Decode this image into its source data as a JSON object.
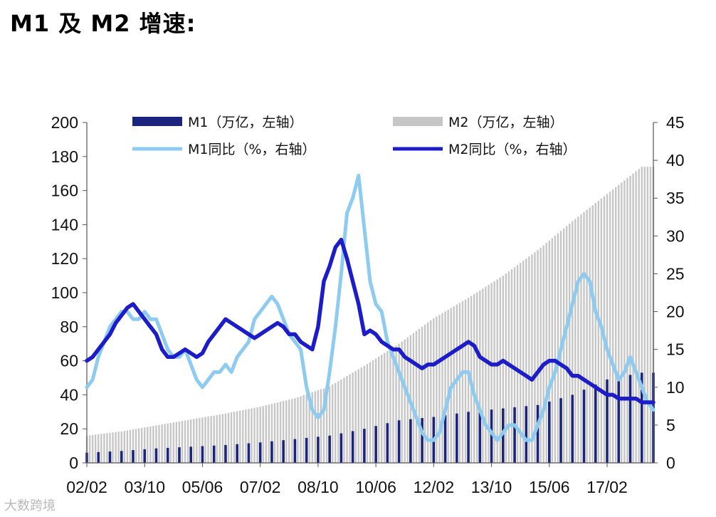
{
  "title": "M1 及 M2 增速:",
  "watermark": "大数跨境",
  "chart_data": {
    "type": "bar+line",
    "title": "M1 及 M2 增速:",
    "x_tick_labels": [
      "02/02",
      "03/10",
      "05/06",
      "07/02",
      "08/10",
      "10/06",
      "12/02",
      "13/10",
      "15/06",
      "17/02"
    ],
    "x_tick_positions_months": [
      0,
      20,
      40,
      60,
      80,
      100,
      120,
      140,
      160,
      180
    ],
    "x_range_months": [
      0,
      196
    ],
    "left_axis": {
      "min": 0,
      "max": 200,
      "ticks": [
        0,
        20,
        40,
        60,
        80,
        100,
        120,
        140,
        160,
        180,
        200
      ]
    },
    "right_axis": {
      "min": 0,
      "max": 45,
      "ticks": [
        0,
        5,
        10,
        15,
        20,
        25,
        30,
        35,
        40,
        45
      ]
    },
    "legend": {
      "m1": "M1（万亿，左轴）",
      "m2": "M2（万亿，左轴）",
      "m1_yoy": "M1同比（%，右轴）",
      "m2_yoy": "M2同比（%，右轴）"
    },
    "colors": {
      "m1_bar": "#1a237e",
      "m2_bar": "#c6c6c6",
      "m1_yoy": "#8ecbf0",
      "m2_yoy": "#1c1cc8"
    },
    "series": [
      {
        "name": "M1（万亿，左轴）",
        "axis": "left",
        "kind": "bar",
        "x": [
          0,
          12,
          24,
          36,
          48,
          60,
          72,
          84,
          96,
          108,
          120,
          132,
          144,
          156,
          168,
          180,
          192
        ],
        "values": [
          6.0,
          7.0,
          8.5,
          9.5,
          10.5,
          12.0,
          14.0,
          16.0,
          20.0,
          25.0,
          27.0,
          30.0,
          32.0,
          34.0,
          40.0,
          49.0,
          53.0
        ]
      },
      {
        "name": "M2（万亿，左轴）",
        "axis": "left",
        "kind": "bar",
        "x": [
          0,
          12,
          24,
          36,
          48,
          60,
          72,
          84,
          96,
          108,
          120,
          132,
          144,
          156,
          168,
          180,
          192
        ],
        "values": [
          16.0,
          18.5,
          22.0,
          25.5,
          29.0,
          33.0,
          38.0,
          45.0,
          57.0,
          70.0,
          85.0,
          97.0,
          110.0,
          125.0,
          142.0,
          158.0,
          174.0
        ]
      },
      {
        "name": "M1同比（%，右轴）",
        "axis": "right",
        "kind": "line",
        "x": [
          0,
          2,
          4,
          6,
          8,
          10,
          12,
          14,
          16,
          18,
          20,
          22,
          24,
          26,
          28,
          30,
          32,
          34,
          36,
          38,
          40,
          42,
          44,
          46,
          48,
          50,
          52,
          54,
          56,
          58,
          60,
          62,
          64,
          66,
          68,
          70,
          72,
          74,
          76,
          78,
          80,
          82,
          84,
          86,
          88,
          90,
          92,
          94,
          96,
          98,
          100,
          102,
          104,
          106,
          108,
          110,
          112,
          114,
          116,
          118,
          120,
          122,
          124,
          126,
          128,
          130,
          132,
          134,
          136,
          138,
          140,
          142,
          144,
          146,
          148,
          150,
          152,
          154,
          156,
          158,
          160,
          162,
          164,
          166,
          168,
          170,
          172,
          174,
          176,
          178,
          180,
          182,
          184,
          186,
          188,
          190,
          192,
          194,
          196
        ],
        "values": [
          10,
          11,
          14,
          16,
          18,
          19,
          20,
          20,
          19,
          19,
          20,
          19,
          19,
          17,
          15,
          14,
          14,
          15,
          13,
          11,
          10,
          11,
          12,
          12,
          13,
          12,
          14,
          15,
          16,
          19,
          20,
          21,
          22,
          21,
          19,
          17,
          16,
          15,
          10,
          7,
          6,
          7,
          12,
          18,
          25,
          33,
          35,
          38,
          31,
          24,
          21,
          20,
          16,
          14,
          12,
          10,
          8,
          6,
          4,
          3,
          3,
          4,
          7,
          10,
          11,
          12,
          12,
          9,
          7,
          5,
          4,
          3,
          4,
          5,
          5,
          4,
          3,
          3,
          5,
          7,
          10,
          12,
          15,
          18,
          21,
          24,
          25,
          24,
          20,
          18,
          15,
          13,
          11,
          12,
          14,
          12,
          10,
          8,
          7
        ]
      },
      {
        "name": "M2同比（%，右轴）",
        "axis": "right",
        "kind": "line",
        "x": [
          0,
          2,
          4,
          6,
          8,
          10,
          12,
          14,
          16,
          18,
          20,
          22,
          24,
          26,
          28,
          30,
          32,
          34,
          36,
          38,
          40,
          42,
          44,
          46,
          48,
          50,
          52,
          54,
          56,
          58,
          60,
          62,
          64,
          66,
          68,
          70,
          72,
          74,
          76,
          78,
          80,
          82,
          84,
          86,
          88,
          90,
          92,
          94,
          96,
          98,
          100,
          102,
          104,
          106,
          108,
          110,
          112,
          114,
          116,
          118,
          120,
          122,
          124,
          126,
          128,
          130,
          132,
          134,
          136,
          138,
          140,
          142,
          144,
          146,
          148,
          150,
          152,
          154,
          156,
          158,
          160,
          162,
          164,
          166,
          168,
          170,
          172,
          174,
          176,
          178,
          180,
          182,
          184,
          186,
          188,
          190,
          192,
          194,
          196
        ],
        "values": [
          13.5,
          14,
          15,
          16,
          17,
          18.5,
          19.5,
          20.5,
          21,
          20,
          19,
          18,
          17,
          15,
          14,
          14,
          14.5,
          15,
          14.5,
          14,
          14.5,
          16,
          17,
          18,
          19,
          18.5,
          18,
          17.5,
          17,
          16.5,
          17,
          17.5,
          18,
          18.5,
          18,
          17,
          17,
          16,
          15.5,
          15,
          18,
          24,
          26,
          28.5,
          29.5,
          27,
          24,
          21,
          17,
          17.5,
          17,
          16,
          15.5,
          15,
          15,
          14,
          13.5,
          13,
          12.5,
          13,
          13,
          13.5,
          14,
          14.5,
          15,
          15.5,
          16,
          15.5,
          14,
          13.5,
          13,
          13,
          13.5,
          13,
          12.5,
          12,
          11.5,
          11,
          12,
          13,
          13.5,
          13.5,
          13,
          12.5,
          11.5,
          11.5,
          11,
          10.5,
          10,
          9.5,
          9,
          9,
          8.5,
          8.5,
          8.5,
          8.5,
          8,
          8,
          8
        ]
      }
    ]
  }
}
